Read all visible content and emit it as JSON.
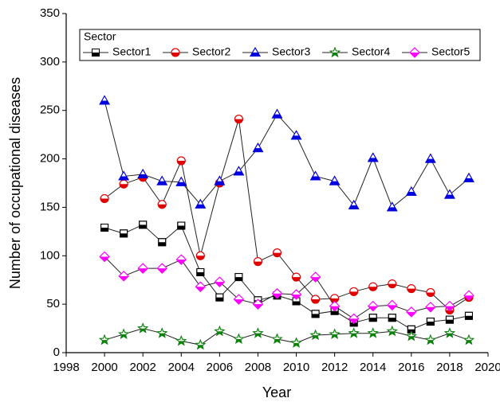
{
  "chart_data": {
    "type": "line",
    "x_label": "Year",
    "y_label": "Number of occupational diseases",
    "legend_title": "Sector",
    "legend": "top",
    "x": [
      2000,
      2001,
      2002,
      2003,
      2004,
      2005,
      2006,
      2007,
      2008,
      2009,
      2010,
      2011,
      2012,
      2013,
      2014,
      2015,
      2016,
      2017,
      2018,
      2019
    ],
    "xlim": [
      1998,
      2020
    ],
    "xticks": [
      1998,
      2000,
      2002,
      2004,
      2006,
      2008,
      2010,
      2012,
      2014,
      2016,
      2018,
      2020
    ],
    "ylim": [
      0,
      350
    ],
    "yticks": [
      0,
      50,
      100,
      150,
      200,
      250,
      300,
      350
    ],
    "series": [
      {
        "name": "Sector1",
        "color": "#000000",
        "marker": "square",
        "values": [
          129,
          123,
          132,
          114,
          131,
          83,
          57,
          78,
          54,
          59,
          53,
          40,
          43,
          31,
          36,
          36,
          24,
          32,
          34,
          38
        ]
      },
      {
        "name": "Sector2",
        "color": "#e00000",
        "marker": "circle",
        "values": [
          159,
          174,
          181,
          153,
          198,
          100,
          175,
          241,
          94,
          103,
          78,
          55,
          56,
          63,
          68,
          71,
          66,
          62,
          44,
          57
        ]
      },
      {
        "name": "Sector3",
        "color": "#0000e0",
        "marker": "triangle",
        "values": [
          260,
          182,
          184,
          177,
          176,
          153,
          177,
          187,
          211,
          246,
          224,
          182,
          177,
          152,
          201,
          150,
          166,
          200,
          163,
          180
        ]
      },
      {
        "name": "Sector4",
        "color": "#108010",
        "marker": "star",
        "values": [
          13,
          19,
          25,
          20,
          12,
          8,
          22,
          14,
          20,
          14,
          10,
          18,
          19,
          20,
          20,
          22,
          17,
          13,
          20,
          13
        ]
      },
      {
        "name": "Sector5",
        "color": "#ff00ff",
        "marker": "diamond",
        "values": [
          99,
          79,
          87,
          87,
          96,
          68,
          73,
          55,
          50,
          61,
          60,
          78,
          48,
          35,
          48,
          49,
          42,
          47,
          48,
          59
        ]
      }
    ]
  }
}
